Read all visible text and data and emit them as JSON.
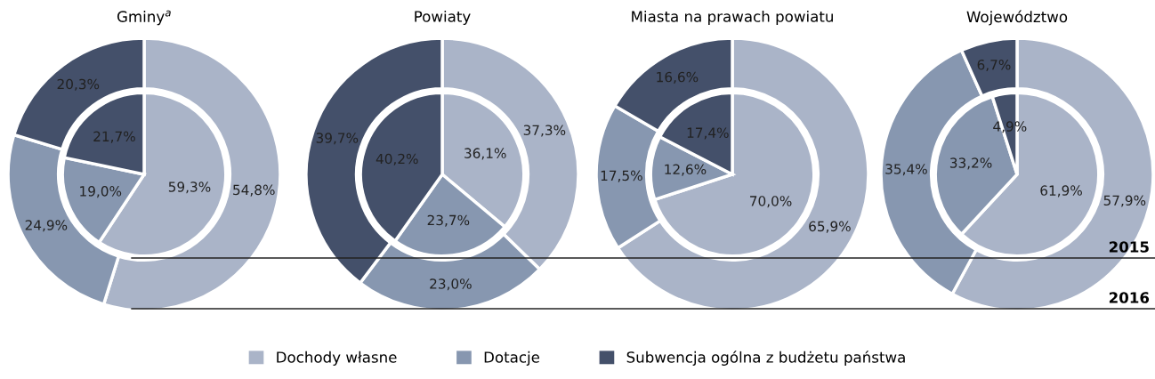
{
  "chart_data": [
    {
      "type": "donut",
      "title": "Gminy$^{a}$",
      "categories": [
        "Dochody własne",
        "Dotacje",
        "Subwencja ogólna z budżetu państwa"
      ],
      "colors": [
        "#aab4c8",
        "#8797b0",
        "#44506a"
      ],
      "legend": "bottom",
      "series": [
        {
          "name": "2015",
          "values": [
            59.3,
            19.0,
            21.7
          ],
          "value_labels": [
            "59,3%",
            "19,0%",
            "21,7%"
          ]
        },
        {
          "name": "2016",
          "values": [
            54.8,
            24.9,
            20.3
          ],
          "value_labels": [
            "54,8%",
            "24,9%",
            "20,3%"
          ]
        }
      ]
    },
    {
      "type": "donut",
      "title": "Powiaty",
      "categories": [
        null,
        null,
        null
      ],
      "colors": [
        "#aab4c8",
        "#8797b0",
        "#44506a"
      ],
      "series": [
        {
          "values": [
            36.1,
            23.7,
            40.2
          ],
          "value_labels": [
            "36,1%",
            "23,7%",
            "40,2%"
          ]
        },
        {
          "values": [
            37.3,
            23.0,
            39.7
          ],
          "value_labels": [
            "37,3%",
            "23,0%",
            "39,7%"
          ]
        }
      ]
    },
    {
      "type": "donut",
      "title": "Miasta na prawach powiatu",
      "categories": [
        null,
        null,
        null
      ],
      "colors": [
        "#aab4c8",
        "#8797b0",
        "#44506a"
      ],
      "series": [
        {
          "values": [
            70.0,
            12.6,
            17.4
          ],
          "value_labels": [
            "70,0%",
            "12,6%",
            "17,4%"
          ]
        },
        {
          "values": [
            65.9,
            17.5,
            16.6
          ],
          "value_labels": [
            "65,9%",
            "17,5%",
            "16,6%"
          ]
        }
      ]
    },
    {
      "type": "donut",
      "title": "Województwo",
      "categories": [
        null,
        null,
        null
      ],
      "colors": [
        "#aab4c8",
        "#8797b0",
        "#44506a"
      ],
      "series": [
        {
          "values": [
            61.9,
            33.2,
            4.9
          ],
          "value_labels": [
            "61,9%",
            "33,2%",
            "4,9%"
          ]
        },
        {
          "values": [
            57.9,
            35.4,
            6.7
          ],
          "value_labels": [
            "57,9%",
            "35,4%",
            "6,7%"
          ]
        }
      ]
    }
  ]
}
